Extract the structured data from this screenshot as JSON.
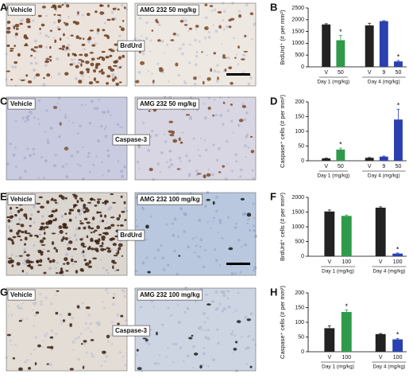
{
  "panels": [
    {
      "letter": "A",
      "left": "Vehicle",
      "right": "AMG 232 50 mg/kg",
      "stain": "BrdUrd"
    },
    {
      "letter": "C",
      "left": "Vehicle",
      "right": "AMG 232 50 mg/kg",
      "stain": "Caspase-3"
    },
    {
      "letter": "E",
      "left": "Vehicle",
      "right": "AMG 232 100 mg/kg",
      "stain": "BrdUrd"
    },
    {
      "letter": "G",
      "left": "Vehicle",
      "right": "AMG 232 100 mg/kg",
      "stain": "Caspase-3"
    }
  ],
  "chart_data": [
    {
      "type": "bar",
      "letter": "B",
      "ylabel": "BrdUrd⁺ (# per mm²)",
      "ylim": [
        0,
        2500
      ],
      "yticks": [
        0,
        500,
        1000,
        1500,
        2000,
        2500
      ],
      "groups": [
        {
          "label": "Day 1 (mg/kg)",
          "categories": [
            "V",
            "50"
          ],
          "values": [
            1800,
            1130
          ],
          "errors": [
            30,
            200
          ],
          "colors": [
            "#222222",
            "#2e9a4a"
          ],
          "stars": [
            null,
            "*"
          ]
        },
        {
          "label": "Day 4 (mg/kg)",
          "categories": [
            "V",
            "9",
            "50"
          ],
          "values": [
            1760,
            1940,
            230
          ],
          "errors": [
            90,
            20,
            40
          ],
          "colors": [
            "#222222",
            "#2a3fb0",
            "#2a3fb0"
          ],
          "stars": [
            null,
            null,
            "*"
          ]
        }
      ]
    },
    {
      "type": "bar",
      "letter": "D",
      "ylabel": "Caspase⁺ cells (# per mm²)",
      "ylim": [
        0,
        200
      ],
      "yticks": [
        0,
        50,
        100,
        150,
        200
      ],
      "groups": [
        {
          "label": "Day 1 (mg/kg)",
          "categories": [
            "V",
            "50"
          ],
          "values": [
            8,
            38
          ],
          "errors": [
            1,
            5
          ],
          "colors": [
            "#222222",
            "#2e9a4a"
          ],
          "stars": [
            null,
            "*"
          ]
        },
        {
          "label": "Day 4 (mg/kg)",
          "categories": [
            "V",
            "9",
            "50"
          ],
          "values": [
            10,
            14,
            140
          ],
          "errors": [
            1,
            2,
            35
          ],
          "colors": [
            "#222222",
            "#2a3fb0",
            "#2a3fb0"
          ],
          "stars": [
            null,
            null,
            "*"
          ]
        }
      ]
    },
    {
      "type": "bar",
      "letter": "F",
      "ylabel": "BrdUrd⁺ cells (# per mm²)",
      "ylim": [
        0,
        2000
      ],
      "yticks": [
        0,
        500,
        1000,
        1500,
        2000
      ],
      "groups": [
        {
          "label": "Day 1 (mg/kg)",
          "categories": [
            "V",
            "100"
          ],
          "values": [
            1520,
            1370
          ],
          "errors": [
            50,
            30
          ],
          "colors": [
            "#222222",
            "#2e9a4a"
          ],
          "stars": [
            null,
            null
          ]
        },
        {
          "label": "Day 4 (mg/kg)",
          "categories": [
            "V",
            "100"
          ],
          "values": [
            1650,
            90
          ],
          "errors": [
            30,
            20
          ],
          "colors": [
            "#222222",
            "#2a3fb0"
          ],
          "stars": [
            null,
            "*"
          ]
        }
      ]
    },
    {
      "type": "bar",
      "letter": "H",
      "ylabel": "Caspase⁺ cells (# per mm²)",
      "ylim": [
        0,
        200
      ],
      "yticks": [
        0,
        50,
        100,
        150,
        200
      ],
      "groups": [
        {
          "label": "Day 1 (mg/kg)",
          "categories": [
            "V",
            "100"
          ],
          "values": [
            80,
            135
          ],
          "errors": [
            8,
            7
          ],
          "colors": [
            "#222222",
            "#2e9a4a"
          ],
          "stars": [
            null,
            "*"
          ]
        },
        {
          "label": "Day 4 (mg/kg)",
          "categories": [
            "V",
            "100"
          ],
          "values": [
            60,
            42
          ],
          "errors": [
            2,
            3
          ],
          "colors": [
            "#222222",
            "#2a3fb0"
          ],
          "stars": [
            null,
            "*"
          ]
        }
      ]
    }
  ]
}
